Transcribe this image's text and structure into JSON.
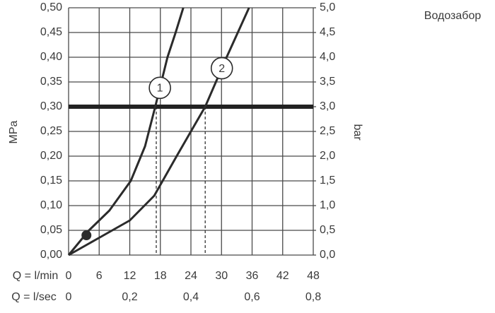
{
  "chart_data": {
    "type": "line",
    "title": "Водозабор",
    "ylabel": "MPa",
    "y2label": "bar",
    "xlabel": "Q = l/min",
    "x2label": "Q = l/sec",
    "xlim": [
      0,
      48
    ],
    "xticks": [
      0,
      6,
      12,
      18,
      24,
      30,
      36,
      42,
      48
    ],
    "x2lim": [
      0,
      0.8
    ],
    "x2ticks": [
      0,
      {
        "value": 0.2,
        "label": "0,2"
      },
      {
        "value": 0.4,
        "label": "0,4"
      },
      {
        "value": 0.6,
        "label": "0,6"
      },
      {
        "value": 0.8,
        "label": "0,8"
      }
    ],
    "ylim": [
      0,
      0.5
    ],
    "yticks": [
      {
        "value": 0,
        "label": "0,00"
      },
      {
        "value": 0.05,
        "label": "0,05"
      },
      {
        "value": 0.1,
        "label": "0,10"
      },
      {
        "value": 0.15,
        "label": "0,15"
      },
      {
        "value": 0.2,
        "label": "0,20"
      },
      {
        "value": 0.25,
        "label": "0,25"
      },
      {
        "value": 0.3,
        "label": "0,30"
      },
      {
        "value": 0.35,
        "label": "0,35"
      },
      {
        "value": 0.4,
        "label": "0,40"
      },
      {
        "value": 0.45,
        "label": "0,45"
      },
      {
        "value": 0.5,
        "label": "0,50"
      }
    ],
    "y2lim": [
      0,
      5
    ],
    "y2ticks": [
      {
        "value": 0,
        "label": "0,0"
      },
      {
        "value": 0.5,
        "label": "0,5"
      },
      {
        "value": 1,
        "label": "1,0"
      },
      {
        "value": 1.5,
        "label": "1,5"
      },
      {
        "value": 2,
        "label": "2,0"
      },
      {
        "value": 2.5,
        "label": "2,5"
      },
      {
        "value": 3,
        "label": "3,0"
      },
      {
        "value": 3.5,
        "label": "3,5"
      },
      {
        "value": 4,
        "label": "4,0"
      },
      {
        "value": 4.5,
        "label": "4,5"
      },
      {
        "value": 5,
        "label": "5,0"
      }
    ],
    "grid": true,
    "series": [
      {
        "name": "1",
        "color": "#2b2b2b",
        "x": [
          0,
          4,
          8,
          12.2,
          15,
          17,
          19.4,
          21,
          22.5
        ],
        "values": [
          0,
          0.05,
          0.09,
          0.15,
          0.22,
          0.3,
          0.4,
          0.45,
          0.5
        ]
      },
      {
        "name": "2",
        "color": "#2b2b2b",
        "x": [
          0,
          6,
          12,
          16.8,
          19,
          21.2,
          24,
          26.8,
          31,
          35.4
        ],
        "values": [
          0,
          0.035,
          0.07,
          0.12,
          0.16,
          0.2,
          0.25,
          0.3,
          0.4,
          0.5
        ]
      }
    ],
    "hline": 0.3,
    "drop_lines_x": [
      17.2,
      26.8
    ],
    "marker": {
      "x": 3.5,
      "y": 0.04
    }
  }
}
